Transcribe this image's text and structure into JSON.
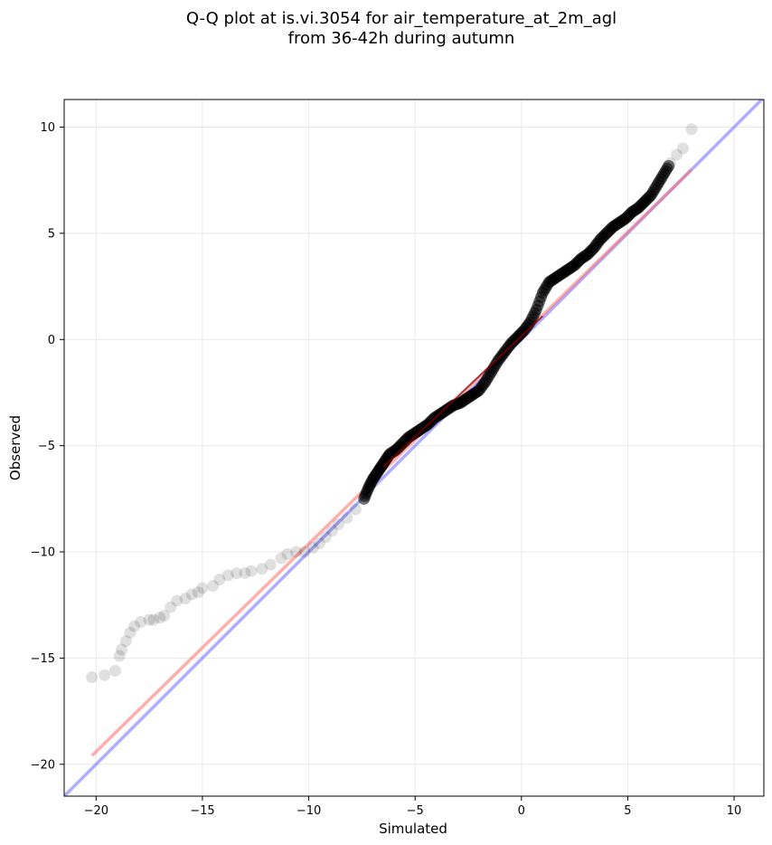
{
  "chart_data": {
    "type": "scatter",
    "title_lines": [
      "Q-Q plot at is.vi.3054 for air_temperature_at_2m_agl",
      "from 36-42h during autumn"
    ],
    "xlabel": "Simulated",
    "ylabel": "Observed",
    "xlim": [
      -21.5,
      11.4
    ],
    "ylim": [
      -21.5,
      11.3
    ],
    "xticks": [
      -20,
      -15,
      -10,
      -5,
      0,
      5,
      10
    ],
    "yticks": [
      -20,
      -15,
      -10,
      -5,
      0,
      5,
      10
    ],
    "xtick_labels": [
      "−20",
      "−15",
      "−10",
      "−5",
      "0",
      "5",
      "10"
    ],
    "ytick_labels": [
      "−20",
      "−15",
      "−10",
      "−5",
      "0",
      "5",
      "10"
    ],
    "grid": true,
    "colors": {
      "points": "#000000",
      "identity_line": "#6b6bff",
      "fit_line": "#ff6b6b",
      "central_line": "#8b0000"
    },
    "identity_line": {
      "x": [
        -21.5,
        11.4
      ],
      "y": [
        -21.5,
        11.4
      ]
    },
    "fit_line": {
      "x": [
        -20.2,
        8.0
      ],
      "y": [
        -19.6,
        8.0
      ]
    },
    "central_segment": {
      "x": [
        -6.5,
        1.0
      ],
      "y": [
        -6.0,
        1.1
      ]
    },
    "points": {
      "x": [
        -20.2,
        -19.6,
        -19.1,
        -18.9,
        -18.8,
        -18.6,
        -18.4,
        -18.2,
        -17.9,
        -17.5,
        -17.3,
        -17.0,
        -16.8,
        -16.5,
        -16.2,
        -15.8,
        -15.5,
        -15.2,
        -15.0,
        -14.5,
        -14.2,
        -13.8,
        -13.4,
        -13.0,
        -12.7,
        -12.2,
        -11.8,
        -11.3,
        -11.0,
        -10.6,
        -10.2,
        -9.8,
        -9.5,
        -9.2,
        -8.9,
        -8.6,
        -8.2,
        -7.8,
        -7.4,
        -7.2,
        -7.0,
        -6.8,
        -6.6,
        -6.4,
        -6.2,
        -5.9,
        -5.6,
        -5.3,
        -5.0,
        -4.7,
        -4.4,
        -4.1,
        -3.8,
        -3.5,
        -3.2,
        -2.9,
        -2.6,
        -2.3,
        -2.0,
        -1.7,
        -1.4,
        -1.1,
        -0.8,
        -0.5,
        -0.2,
        0.1,
        0.4,
        0.7,
        1.0,
        1.3,
        1.6,
        1.9,
        2.2,
        2.5,
        2.8,
        3.1,
        3.4,
        3.7,
        4.0,
        4.3,
        4.6,
        4.9,
        5.2,
        5.5,
        5.8,
        6.1,
        6.4,
        6.7,
        7.0,
        7.3,
        7.6,
        8.0
      ],
      "y": [
        -15.9,
        -15.8,
        -15.6,
        -14.9,
        -14.6,
        -14.2,
        -13.8,
        -13.5,
        -13.3,
        -13.2,
        -13.2,
        -13.1,
        -13.0,
        -12.6,
        -12.3,
        -12.2,
        -12.0,
        -11.9,
        -11.7,
        -11.6,
        -11.3,
        -11.1,
        -11.0,
        -11.0,
        -10.9,
        -10.8,
        -10.6,
        -10.3,
        -10.1,
        -10.0,
        -10.0,
        -9.8,
        -9.6,
        -9.3,
        -9.0,
        -8.7,
        -8.4,
        -8.0,
        -7.5,
        -7.0,
        -6.6,
        -6.3,
        -6.0,
        -5.7,
        -5.4,
        -5.2,
        -4.9,
        -4.6,
        -4.4,
        -4.2,
        -4.0,
        -3.7,
        -3.5,
        -3.3,
        -3.1,
        -3.0,
        -2.8,
        -2.6,
        -2.4,
        -2.0,
        -1.5,
        -1.0,
        -0.6,
        -0.2,
        0.1,
        0.4,
        0.8,
        1.4,
        2.2,
        2.7,
        2.9,
        3.1,
        3.3,
        3.5,
        3.8,
        4.0,
        4.3,
        4.7,
        5.0,
        5.3,
        5.5,
        5.7,
        6.0,
        6.2,
        6.5,
        6.8,
        7.3,
        7.8,
        8.3,
        8.7,
        9.0,
        9.9
      ]
    }
  }
}
